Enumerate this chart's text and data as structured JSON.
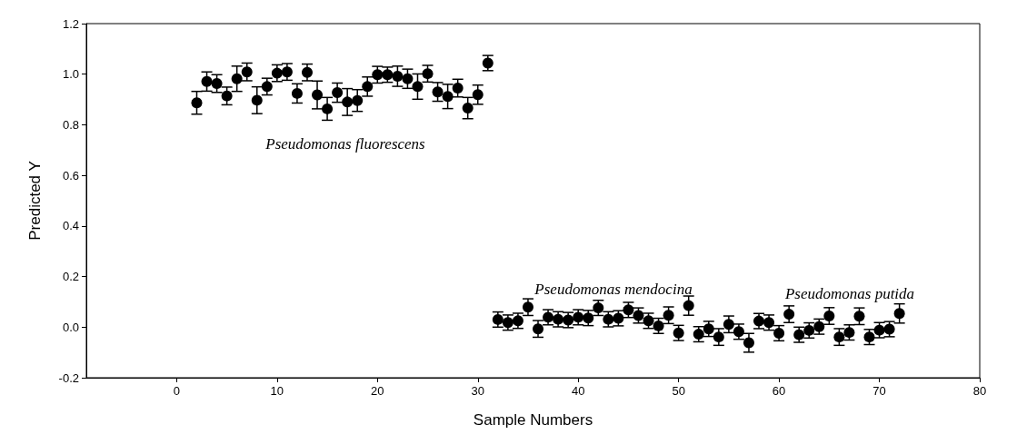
{
  "chart_data": {
    "type": "scatter",
    "xlabel": "Sample Numbers",
    "ylabel": "Predicted Y",
    "x": [
      2,
      3,
      4,
      5,
      6,
      7,
      8,
      9,
      10,
      11,
      12,
      13,
      14,
      15,
      16,
      17,
      18,
      19,
      20,
      21,
      22,
      23,
      24,
      25,
      26,
      27,
      28,
      29,
      30,
      31,
      32,
      33,
      34,
      35,
      36,
      37,
      38,
      39,
      40,
      41,
      42,
      43,
      44,
      45,
      46,
      47,
      48,
      49,
      50,
      51,
      52,
      53,
      54,
      55,
      56,
      57,
      58,
      59,
      60,
      61,
      62,
      63,
      64,
      65,
      66,
      67,
      68,
      69,
      70,
      71,
      72
    ],
    "series": [
      {
        "color": "#000000",
        "values": [
          0.887,
          0.971,
          0.963,
          0.914,
          0.982,
          1.009,
          0.897,
          0.951,
          1.004,
          1.009,
          0.924,
          1.007,
          0.918,
          0.863,
          0.927,
          0.89,
          0.896,
          0.951,
          0.998,
          0.998,
          0.992,
          0.982,
          0.951,
          1.002,
          0.93,
          0.912,
          0.945,
          0.866,
          0.919,
          1.044,
          0.03,
          0.018,
          0.025,
          0.079,
          -0.007,
          0.039,
          0.031,
          0.028,
          0.039,
          0.036,
          0.076,
          0.031,
          0.035,
          0.068,
          0.046,
          0.025,
          0.005,
          0.047,
          -0.023,
          0.085,
          -0.028,
          -0.007,
          -0.039,
          0.011,
          -0.018,
          -0.062,
          0.024,
          0.018,
          -0.024,
          0.051,
          -0.03,
          -0.013,
          0.002,
          0.044,
          -0.039,
          -0.021,
          0.043,
          -0.039,
          -0.012,
          -0.008,
          0.054
        ],
        "errors": [
          0.045,
          0.038,
          0.035,
          0.035,
          0.05,
          0.035,
          0.053,
          0.033,
          0.033,
          0.033,
          0.038,
          0.033,
          0.055,
          0.045,
          0.038,
          0.053,
          0.043,
          0.038,
          0.033,
          0.03,
          0.04,
          0.038,
          0.05,
          0.033,
          0.037,
          0.048,
          0.035,
          0.042,
          0.038,
          0.03,
          0.03,
          0.03,
          0.03,
          0.033,
          0.033,
          0.03,
          0.03,
          0.03,
          0.03,
          0.03,
          0.03,
          0.03,
          0.03,
          0.03,
          0.03,
          0.03,
          0.03,
          0.033,
          0.03,
          0.038,
          0.03,
          0.03,
          0.033,
          0.033,
          0.03,
          0.037,
          0.03,
          0.03,
          0.03,
          0.033,
          0.03,
          0.03,
          0.03,
          0.033,
          0.033,
          0.03,
          0.033,
          0.03,
          0.03,
          0.03,
          0.038
        ]
      }
    ],
    "xlim": [
      -9,
      80
    ],
    "xticks": [
      0,
      10,
      20,
      30,
      40,
      50,
      60,
      70,
      80
    ],
    "ylim": [
      -0.2,
      1.2
    ],
    "yticks": [
      -0.2,
      {
        "value": 0,
        "label": "0.0"
      },
      0.2,
      0.4,
      0.6,
      0.8,
      {
        "value": 1,
        "label": "1.0"
      },
      1.2
    ],
    "marker": "circle",
    "grid": false,
    "annotations": [
      "Pseudomonas fluorescens",
      "Pseudomonas mendocina",
      "Pseudomonas putida"
    ]
  }
}
